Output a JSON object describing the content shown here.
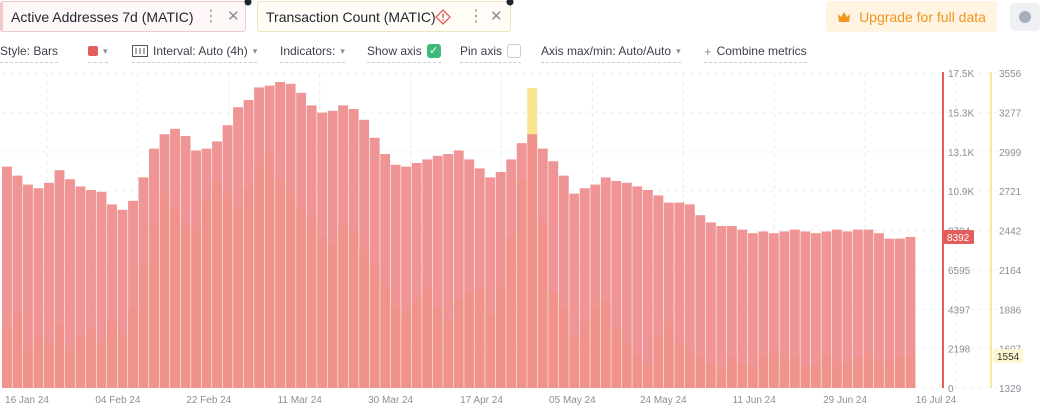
{
  "tabs": [
    {
      "label": "Active Addresses 7d (MATIC)",
      "active": true
    },
    {
      "label": "Transaction Count (MATIC)",
      "active": false
    }
  ],
  "upgrade": {
    "label": "Upgrade for full data",
    "icon": "crown-icon"
  },
  "toolbar": {
    "style": "Style: Bars",
    "interval": "Interval: Auto (4h)",
    "indicators": "Indicators:",
    "show_axis": "Show axis",
    "pin_axis": "Pin axis",
    "axis_maxmin": "Axis max/min: Auto/Auto",
    "combine": "Combine metrics"
  },
  "colors": {
    "series1": "#ee8c8c",
    "series1_badge": "#e35d5d",
    "series2": "#f6e27a",
    "accent": "#f0961e",
    "check": "#3fb97a"
  },
  "chart_data": {
    "type": "bar",
    "x_tick_labels": [
      "16 Jan 24",
      "04 Feb 24",
      "22 Feb 24",
      "11 Mar 24",
      "30 Mar 24",
      "17 Apr 24",
      "05 May 24",
      "24 May 24",
      "11 Jun 24",
      "29 Jun 24",
      "16 Jul 24"
    ],
    "left_axis": {
      "ticks": [
        "0",
        "2198",
        "4397",
        "6595",
        "8794",
        "10.9K",
        "13.1K",
        "15.3K",
        "17.5K"
      ],
      "ylim": [
        0,
        17500
      ],
      "current_value": "8392"
    },
    "right_axis": {
      "ticks": [
        "1329",
        "1607",
        "1886",
        "2164",
        "2442",
        "2721",
        "2999",
        "3277",
        "3556"
      ],
      "ylim": [
        1329,
        3556
      ],
      "current_value": "1554"
    },
    "series": [
      {
        "name": "Active Addresses 7d (MATIC)",
        "axis": "left",
        "style": "bars",
        "values": [
          12300,
          11800,
          11300,
          11100,
          11400,
          12100,
          11600,
          11200,
          11000,
          10900,
          10200,
          9900,
          10400,
          11700,
          13300,
          14100,
          14400,
          14000,
          13200,
          13300,
          13700,
          14600,
          15600,
          16000,
          16700,
          16800,
          17000,
          16900,
          16400,
          15700,
          15300,
          15400,
          15700,
          15500,
          14900,
          13900,
          13000,
          12400,
          12300,
          12500,
          12700,
          12900,
          13000,
          13200,
          12700,
          12200,
          11700,
          12000,
          12700,
          13600,
          14100,
          13300,
          12600,
          11800,
          10800,
          11100,
          11300,
          11700,
          11500,
          11400,
          11200,
          11000,
          10700,
          10300,
          10300,
          10200,
          9600,
          9200,
          9000,
          9000,
          8800,
          8600,
          8700,
          8600,
          8700,
          8800,
          8700,
          8600,
          8700,
          8800,
          8700,
          8800,
          8800,
          8600,
          8300,
          8300,
          8392
        ]
      },
      {
        "name": "Transaction Count (MATIC)",
        "axis": "right",
        "style": "bars",
        "values": [
          1750,
          1850,
          1600,
          1700,
          1650,
          1780,
          1600,
          1700,
          1750,
          1650,
          1800,
          1700,
          1900,
          2200,
          2500,
          2700,
          2600,
          2500,
          2450,
          2650,
          2800,
          2700,
          2600,
          2750,
          2900,
          3000,
          2800,
          2700,
          2600,
          2550,
          2400,
          2350,
          2500,
          2450,
          2300,
          2200,
          2050,
          1900,
          1850,
          1950,
          2050,
          1900,
          1800,
          1950,
          2000,
          2050,
          1850,
          2050,
          2400,
          2800,
          3450,
          2500,
          2000,
          1900,
          1700,
          1800,
          1900,
          1950,
          1750,
          1650,
          1550,
          1500,
          1700,
          1800,
          1650,
          1600,
          1550,
          1500,
          1450,
          1550,
          1500,
          1480,
          1550,
          1600,
          1500,
          1550,
          1480,
          1500,
          1560,
          1520,
          1500,
          1550,
          1580,
          1500,
          1540,
          1550,
          1554
        ]
      }
    ]
  }
}
